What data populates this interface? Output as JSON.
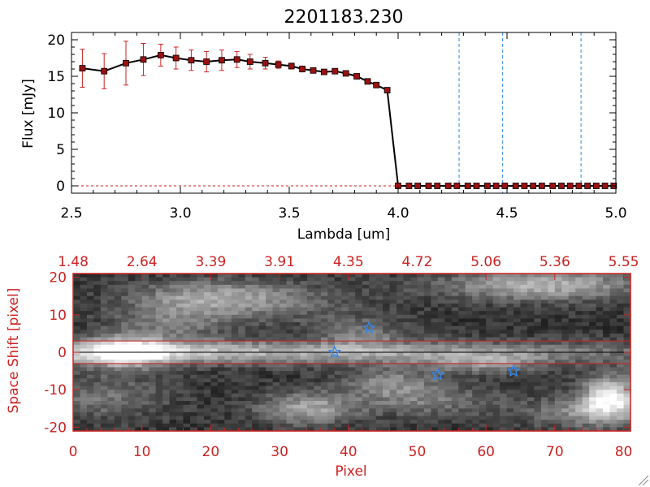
{
  "colors": {
    "axis_black": "#000000",
    "axis_red": "#cc2222",
    "marker_red": "#991111",
    "line_blue": "#3388dd",
    "star_blue": "#3388ee"
  },
  "chart_data": [
    {
      "type": "line",
      "title": "2201183.230",
      "xlabel": "Lambda [um]",
      "ylabel": "Flux [mJy]",
      "xlim": [
        2.5,
        5.0
      ],
      "ylim": [
        -1,
        21
      ],
      "x_ticks": [
        "2.5",
        "3.0",
        "3.5",
        "4.0",
        "4.5",
        "5.0"
      ],
      "y_ticks": [
        "0",
        "5",
        "10",
        "15",
        "20"
      ],
      "x": [
        2.55,
        2.65,
        2.75,
        2.83,
        2.91,
        2.98,
        3.05,
        3.12,
        3.19,
        3.26,
        3.32,
        3.39,
        3.45,
        3.51,
        3.56,
        3.61,
        3.66,
        3.71,
        3.76,
        3.81,
        3.86,
        3.9,
        3.95,
        4.0,
        4.05,
        4.09,
        4.14,
        4.18,
        4.23,
        4.27,
        4.32,
        4.36,
        4.41,
        4.45,
        4.49,
        4.54,
        4.58,
        4.62,
        4.66,
        4.71,
        4.75,
        4.79,
        4.83,
        4.87,
        4.91,
        4.95,
        4.99
      ],
      "y": [
        16.1,
        15.7,
        16.8,
        17.3,
        17.9,
        17.5,
        17.2,
        17.0,
        17.2,
        17.3,
        17.0,
        16.8,
        16.6,
        16.4,
        16.0,
        15.8,
        15.6,
        15.7,
        15.4,
        15.0,
        14.3,
        13.8,
        13.1,
        0,
        0,
        0,
        0,
        0,
        0,
        0,
        0,
        0,
        0,
        0,
        0,
        0,
        0,
        0,
        0,
        0,
        0,
        0,
        0,
        0,
        0,
        0,
        0
      ],
      "yerr": [
        2.6,
        2.4,
        3.0,
        2.2,
        1.5,
        1.5,
        1.4,
        1.4,
        1.4,
        1.1,
        1.0,
        0.8,
        0.5,
        0.4,
        0.4,
        0.3,
        0.3,
        0.3,
        0.3,
        0.3,
        0.3,
        0.3,
        0.3,
        0,
        0,
        0,
        0,
        0,
        0,
        0,
        0,
        0,
        0,
        0,
        0,
        0,
        0,
        0,
        0,
        0,
        0,
        0,
        0,
        0,
        0,
        0,
        0
      ],
      "vlines": [
        4.28,
        4.48,
        4.84
      ],
      "hline": 0
    },
    {
      "type": "heatmap",
      "xlabel": "Pixel",
      "ylabel": "Space Shift [pixel]",
      "xlim": [
        0,
        81
      ],
      "ylim": [
        -21,
        21
      ],
      "x_ticks": [
        "0",
        "10",
        "20",
        "30",
        "40",
        "50",
        "60",
        "70",
        "80"
      ],
      "y_ticks": [
        "20",
        "10",
        "0",
        "-10",
        "-20"
      ],
      "top_axis_ticks": [
        "1.48",
        "2.64",
        "3.39",
        "3.91",
        "4.35",
        "4.72",
        "5.06",
        "5.36",
        "5.55"
      ],
      "hlines": [
        3,
        -3,
        0
      ],
      "stars": [
        [
          43,
          6.5
        ],
        [
          38,
          0
        ],
        [
          53,
          -6
        ],
        [
          64,
          -5
        ]
      ]
    }
  ]
}
